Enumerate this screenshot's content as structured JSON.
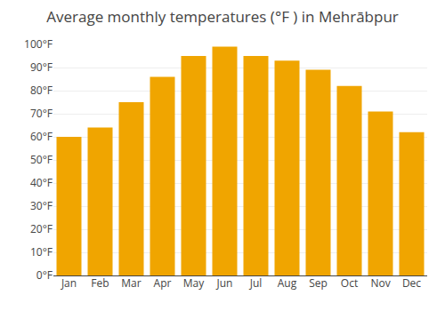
{
  "chart_data": {
    "type": "bar",
    "title": "Average monthly temperatures (°F ) in Mehrābpur",
    "categories": [
      "Jan",
      "Feb",
      "Mar",
      "Apr",
      "May",
      "Jun",
      "Jul",
      "Aug",
      "Sep",
      "Oct",
      "Nov",
      "Dec"
    ],
    "values": [
      60,
      64,
      75,
      86,
      95,
      99,
      95,
      93,
      89,
      82,
      71,
      62
    ],
    "color": "#F0A500",
    "ylim": [
      0,
      100
    ],
    "yticks": [
      {
        "value": 0,
        "label": "0°F"
      },
      {
        "value": 10,
        "label": "10°F"
      },
      {
        "value": 20,
        "label": "20°F"
      },
      {
        "value": 30,
        "label": "30°F"
      },
      {
        "value": 40,
        "label": "40°F"
      },
      {
        "value": 50,
        "label": "50°F"
      },
      {
        "value": 60,
        "label": "60°F"
      },
      {
        "value": 70,
        "label": "70°F"
      },
      {
        "value": 80,
        "label": "80°F"
      },
      {
        "value": 90,
        "label": "90°F"
      },
      {
        "value": 100,
        "label": "100°F"
      }
    ],
    "grid": true
  }
}
